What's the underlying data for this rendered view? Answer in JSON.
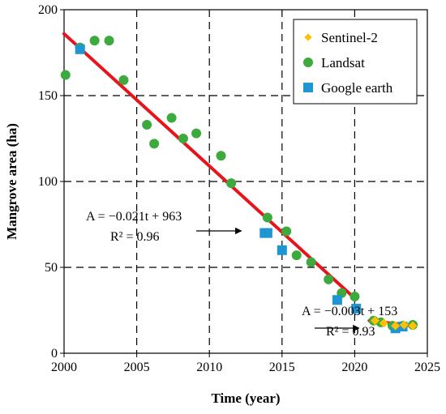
{
  "chart_data": {
    "type": "scatter",
    "xlabel": "Time (year)",
    "ylabel": "Mangrove area (ha)",
    "xlim": [
      2000,
      2025
    ],
    "ylim": [
      0,
      200
    ],
    "xticks": [
      2000,
      2005,
      2010,
      2015,
      2020,
      2025
    ],
    "yticks": [
      0,
      50,
      100,
      150,
      200
    ],
    "grid": true,
    "legend_position": "top-right",
    "colors": {
      "sentinel": "#FFC000",
      "landsat": "#3DAA3D",
      "google": "#1F95D2",
      "fit": "#E8141B"
    },
    "series": [
      {
        "name": "Sentinel-2",
        "marker": "diamond",
        "points": [
          [
            2021.4,
            19
          ],
          [
            2022.0,
            17.5
          ],
          [
            2022.8,
            16
          ],
          [
            2023.4,
            16.5
          ],
          [
            2024.0,
            16
          ]
        ]
      },
      {
        "name": "Landsat",
        "marker": "circle",
        "points": [
          [
            2000.1,
            162
          ],
          [
            2001.1,
            178
          ],
          [
            2002.1,
            182
          ],
          [
            2003.1,
            182
          ],
          [
            2004.1,
            159
          ],
          [
            2005.7,
            133
          ],
          [
            2006.2,
            122
          ],
          [
            2007.4,
            137
          ],
          [
            2008.2,
            125
          ],
          [
            2009.1,
            128
          ],
          [
            2010.8,
            115
          ],
          [
            2011.5,
            99
          ],
          [
            2014.0,
            79
          ],
          [
            2015.3,
            71
          ],
          [
            2016.0,
            57
          ],
          [
            2017.0,
            53
          ],
          [
            2018.2,
            43
          ],
          [
            2019.1,
            35
          ],
          [
            2020.0,
            33
          ],
          [
            2021.3,
            19
          ],
          [
            2021.8,
            18
          ],
          [
            2022.6,
            16
          ],
          [
            2023.3,
            16
          ],
          [
            2024.0,
            16.5
          ]
        ]
      },
      {
        "name": "Google earth",
        "marker": "square",
        "points": [
          [
            2001.1,
            177
          ],
          [
            2013.8,
            70
          ],
          [
            2014.0,
            70
          ],
          [
            2015.0,
            60
          ],
          [
            2018.8,
            31
          ],
          [
            2020.1,
            26
          ],
          [
            2022.8,
            14.5
          ],
          [
            2023.3,
            15.5
          ]
        ]
      }
    ],
    "fits": [
      {
        "x": [
          2000.0,
          2020.0
        ],
        "y": [
          186,
          32
        ]
      },
      {
        "x": [
          2021.0,
          2024.0
        ],
        "y": [
          19,
          16
        ]
      }
    ],
    "annotations": [
      {
        "line1": "A = −0.021t + 963",
        "line2": "R² = 0.96",
        "arrow_to": [
          2012.2,
          71.5
        ]
      },
      {
        "line1": "A = −0.003t + 153",
        "line2": "R² = 0.93",
        "arrow_to": [
          2020.3,
          14.5
        ]
      }
    ]
  }
}
